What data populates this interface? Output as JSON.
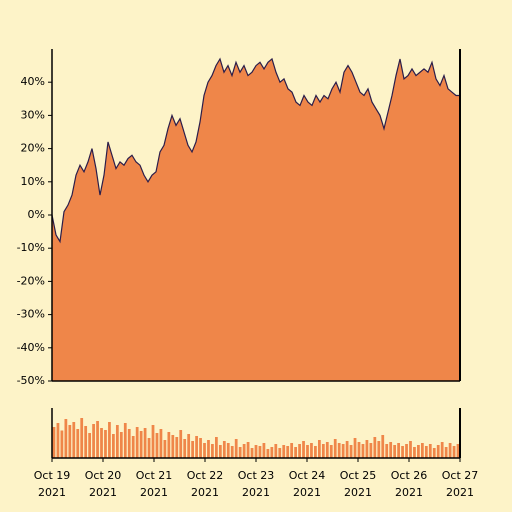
{
  "chart_data": {
    "type": "area",
    "background": "#fdf3c8",
    "ylim": [
      -50,
      50
    ],
    "yticks": [
      {
        "value": -50,
        "label": "-50%"
      },
      {
        "value": -40,
        "label": "-40%"
      },
      {
        "value": -30,
        "label": "-30%"
      },
      {
        "value": -20,
        "label": "-20%"
      },
      {
        "value": -10,
        "label": "-10%"
      },
      {
        "value": 0,
        "label": "0%"
      },
      {
        "value": 10,
        "label": "10%"
      },
      {
        "value": 20,
        "label": "20%"
      },
      {
        "value": 30,
        "label": "30%"
      },
      {
        "value": 40,
        "label": "40%"
      }
    ],
    "xtick_labels": [
      [
        "Oct 19",
        "2021"
      ],
      [
        "Oct 20",
        "2021"
      ],
      [
        "Oct 21",
        "2021"
      ],
      [
        "Oct 22",
        "2021"
      ],
      [
        "Oct 23",
        "2021"
      ],
      [
        "Oct 24",
        "2021"
      ],
      [
        "Oct 25",
        "2021"
      ],
      [
        "Oct 26",
        "2021"
      ],
      [
        "Oct 27",
        "2021"
      ]
    ],
    "series": [
      {
        "color": "#ef8649",
        "line_color": "#2b1d4a",
        "values": [
          0,
          -6,
          -8,
          1,
          3,
          6,
          12,
          15,
          13,
          16,
          20,
          14,
          6,
          12,
          22,
          18,
          14,
          16,
          15,
          17,
          18,
          16,
          15,
          12,
          10,
          12,
          13,
          19,
          21,
          26,
          30,
          27,
          29,
          25,
          21,
          19,
          22,
          28,
          36,
          40,
          42,
          45,
          47,
          43,
          45,
          42,
          46,
          43,
          45,
          42,
          43,
          45,
          46,
          44,
          46,
          47,
          43,
          40,
          41,
          38,
          37,
          34,
          33,
          36,
          34,
          33,
          36,
          34,
          36,
          35,
          38,
          40,
          37,
          43,
          45,
          43,
          40,
          37,
          36,
          38,
          34,
          32,
          30,
          26,
          31,
          36,
          42,
          47,
          41,
          42,
          44,
          42,
          43,
          44,
          43,
          46,
          41,
          39,
          42,
          38,
          37,
          36,
          36
        ]
      }
    ],
    "volume": {
      "color": "#ef8649",
      "ylim": [
        0,
        100
      ],
      "values": [
        62,
        70,
        55,
        78,
        66,
        72,
        58,
        80,
        64,
        50,
        68,
        74,
        60,
        56,
        72,
        48,
        66,
        52,
        70,
        58,
        44,
        62,
        54,
        60,
        40,
        66,
        50,
        58,
        36,
        52,
        46,
        42,
        56,
        38,
        48,
        34,
        44,
        40,
        30,
        36,
        28,
        42,
        26,
        34,
        30,
        24,
        38,
        22,
        28,
        32,
        20,
        26,
        24,
        30,
        18,
        22,
        28,
        20,
        26,
        24,
        30,
        22,
        28,
        34,
        26,
        30,
        24,
        36,
        28,
        32,
        26,
        38,
        30,
        28,
        34,
        26,
        40,
        32,
        28,
        36,
        30,
        42,
        34,
        46,
        28,
        32,
        26,
        30,
        24,
        28,
        34,
        22,
        26,
        30,
        24,
        28,
        20,
        26,
        32,
        22,
        30,
        24,
        28
      ]
    }
  }
}
